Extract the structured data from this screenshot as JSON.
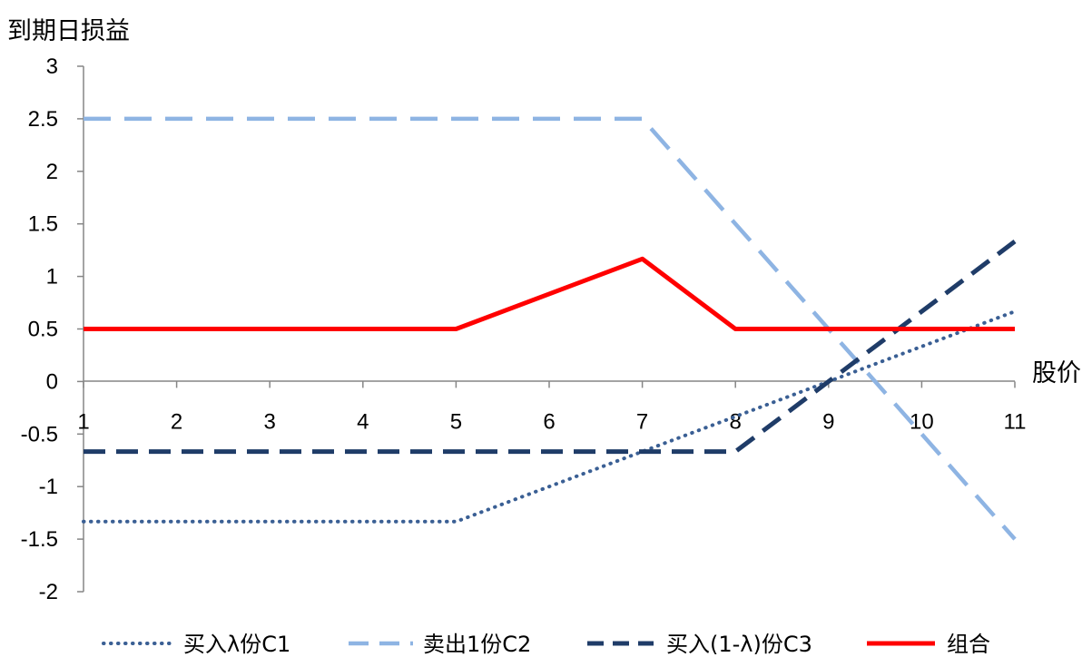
{
  "chart_data": {
    "type": "line",
    "title": "",
    "ylabel": "到期日损益",
    "xlabel": "股价",
    "ylim": [
      -2,
      3
    ],
    "xlim": [
      1,
      11
    ],
    "yticks": [
      "3",
      "2.5",
      "2",
      "1.5",
      "1",
      "0.5",
      "0",
      "-0.5",
      "-1",
      "-1.5",
      "-2"
    ],
    "xticks": [
      "1",
      "2",
      "3",
      "4",
      "5",
      "6",
      "7",
      "8",
      "9",
      "10",
      "11"
    ],
    "grid": false,
    "legend_position": "bottom",
    "series": [
      {
        "name": "买入λ份C1",
        "style": "dotted",
        "color": "#3A5F94",
        "points": [
          [
            1,
            -1.333
          ],
          [
            5,
            -1.333
          ],
          [
            11,
            0.667
          ]
        ]
      },
      {
        "name": "卖出1份C2",
        "style": "dashed",
        "color": "#8EB4E3",
        "points": [
          [
            1,
            2.5
          ],
          [
            7,
            2.5
          ],
          [
            11,
            -1.5
          ]
        ]
      },
      {
        "name": "买入(1-λ)份C3",
        "style": "dashed",
        "color": "#1F3C68",
        "points": [
          [
            1,
            -0.667
          ],
          [
            8,
            -0.667
          ],
          [
            11,
            1.333
          ]
        ]
      },
      {
        "name": "组合",
        "style": "solid",
        "color": "#FF0000",
        "points": [
          [
            1,
            0.5
          ],
          [
            5,
            0.5
          ],
          [
            7,
            1.167
          ],
          [
            8,
            0.5
          ],
          [
            11,
            0.5
          ]
        ]
      }
    ]
  }
}
